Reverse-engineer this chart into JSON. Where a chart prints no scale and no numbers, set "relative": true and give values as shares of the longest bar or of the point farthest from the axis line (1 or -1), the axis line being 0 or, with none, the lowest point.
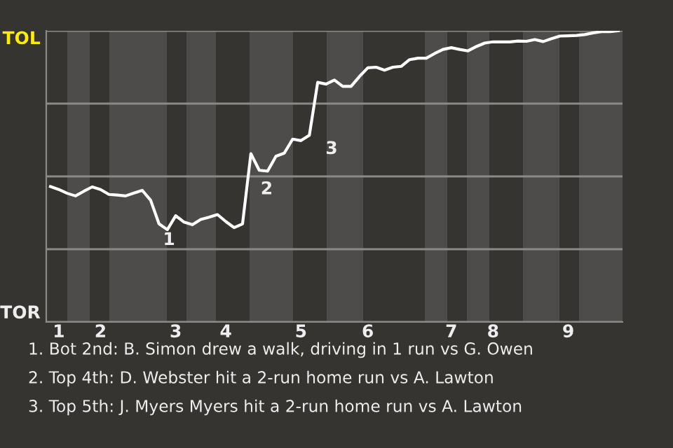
{
  "chart_data": {
    "type": "line",
    "relative": true,
    "categories": [
      null,
      "1",
      null,
      null,
      null,
      null,
      "2",
      null,
      null,
      null,
      null,
      null,
      null,
      null,
      null,
      "3",
      null,
      null,
      null,
      null,
      null,
      "4",
      null,
      null,
      null,
      null,
      null,
      null,
      null,
      null,
      "5",
      null,
      null,
      null,
      null,
      null,
      null,
      null,
      "6",
      null,
      null,
      null,
      null,
      null,
      null,
      null,
      null,
      null,
      "7",
      null,
      null,
      null,
      null,
      "8",
      null,
      null,
      null,
      null,
      null,
      null,
      null,
      null,
      "9",
      null,
      null,
      null,
      null,
      null,
      null
    ],
    "grid": "y",
    "legend": false,
    "marker": "none",
    "line_style": "solid",
    "series": [
      {
        "color": "#ffffff",
        "values": [
          0.465,
          0.455,
          0.442,
          0.433,
          0.449,
          0.464,
          0.455,
          0.438,
          0.436,
          0.433,
          0.443,
          0.452,
          0.418,
          0.337,
          0.317,
          0.365,
          0.343,
          0.334,
          0.352,
          0.36,
          0.369,
          0.345,
          0.324,
          0.337,
          0.578,
          0.521,
          0.518,
          0.569,
          0.58,
          0.628,
          0.623,
          0.641,
          0.823,
          0.817,
          0.831,
          0.809,
          0.809,
          0.843,
          0.873,
          0.875,
          0.865,
          0.875,
          0.878,
          0.901,
          0.906,
          0.906,
          0.922,
          0.936,
          0.942,
          0.936,
          0.931,
          0.946,
          0.958,
          0.962,
          0.962,
          0.962,
          0.965,
          0.964,
          0.97,
          0.963,
          0.973,
          0.982,
          0.983,
          0.984,
          0.987,
          0.993,
          0.997,
          0.997,
          1
        ]
      }
    ],
    "annotations": [
      "TOL",
      "TOR",
      "1",
      "2",
      "3",
      "1. Bot 2nd: B. Simon drew a walk, driving in 1 run vs G. Owen",
      "2. Top 4th: D. Webster hit a 2-run home run vs A. Lawton",
      "3. Top 5th: J. Myers Myers hit a 2-run home run vs A. Lawton"
    ]
  }
}
